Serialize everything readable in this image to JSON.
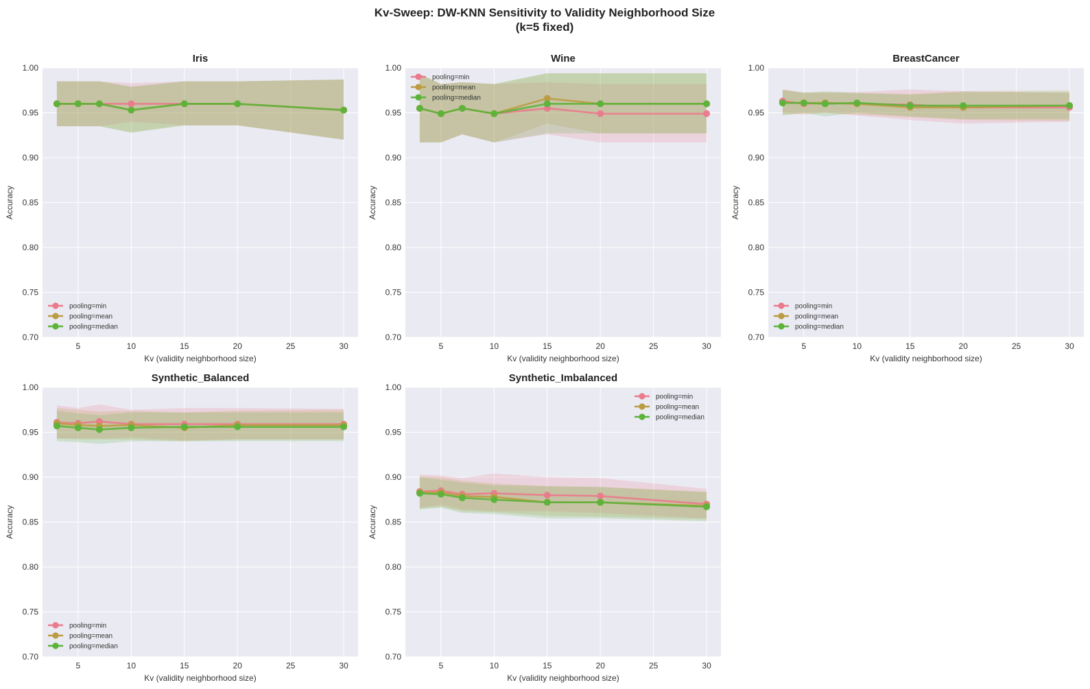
{
  "figure": {
    "title_line1": "Kv-Sweep: DW-KNN Sensitivity to Validity Neighborhood Size",
    "title_line2": "(k=5 fixed)"
  },
  "colors": {
    "min": "#ea7a8c",
    "mean": "#bb9c42",
    "median": "#5cb33a",
    "panel_bg": "#eaeaf2",
    "grid": "#ffffff"
  },
  "chart_data": [
    {
      "type": "line",
      "title": "Iris",
      "xlabel": "Kv (validity neighborhood size)",
      "ylabel": "Accuracy",
      "x": [
        3,
        5,
        7,
        10,
        15,
        20,
        30
      ],
      "xlim": [
        1.65,
        31.35
      ],
      "ylim": [
        0.7,
        1.0
      ],
      "xticks": [
        5,
        10,
        15,
        20,
        25,
        30
      ],
      "yticks": [
        "0.70",
        "0.75",
        "0.80",
        "0.85",
        "0.90",
        "0.95",
        "1.00"
      ],
      "grid": true,
      "legend": "lower-left",
      "series": [
        {
          "name": "pooling=min",
          "color_key": "min",
          "values": [
            0.96,
            0.96,
            0.96,
            0.96,
            0.96,
            0.96,
            0.953
          ],
          "lower": [
            0.935,
            0.935,
            0.935,
            0.94,
            0.936,
            0.936,
            0.92
          ],
          "upper": [
            0.985,
            0.985,
            0.985,
            0.983,
            0.985,
            0.985,
            0.987
          ]
        },
        {
          "name": "pooling=mean",
          "color_key": "mean",
          "values": [
            0.96,
            0.96,
            0.96,
            0.953,
            0.96,
            0.96,
            0.953
          ],
          "lower": [
            0.935,
            0.935,
            0.935,
            0.928,
            0.936,
            0.936,
            0.92
          ],
          "upper": [
            0.985,
            0.985,
            0.985,
            0.979,
            0.985,
            0.985,
            0.987
          ]
        },
        {
          "name": "pooling=median",
          "color_key": "median",
          "values": [
            0.96,
            0.96,
            0.96,
            0.953,
            0.96,
            0.96,
            0.953
          ],
          "lower": [
            0.935,
            0.935,
            0.935,
            0.928,
            0.936,
            0.936,
            0.92
          ],
          "upper": [
            0.985,
            0.985,
            0.985,
            0.979,
            0.985,
            0.985,
            0.987
          ]
        }
      ]
    },
    {
      "type": "line",
      "title": "Wine",
      "xlabel": "Kv (validity neighborhood size)",
      "ylabel": "Accuracy",
      "x": [
        3,
        5,
        7,
        10,
        15,
        20,
        30
      ],
      "xlim": [
        1.65,
        31.35
      ],
      "ylim": [
        0.7,
        1.0
      ],
      "xticks": [
        5,
        10,
        15,
        20,
        25,
        30
      ],
      "yticks": [
        "0.70",
        "0.75",
        "0.80",
        "0.85",
        "0.90",
        "0.95",
        "1.00"
      ],
      "grid": true,
      "legend": "upper-left",
      "series": [
        {
          "name": "pooling=min",
          "color_key": "min",
          "values": [
            0.955,
            0.949,
            0.955,
            0.949,
            0.955,
            0.949,
            0.949
          ],
          "lower": [
            0.917,
            0.917,
            0.926,
            0.917,
            0.926,
            0.917,
            0.917
          ],
          "upper": [
            0.993,
            0.982,
            0.984,
            0.982,
            0.984,
            0.982,
            0.982
          ]
        },
        {
          "name": "pooling=mean",
          "color_key": "mean",
          "values": [
            0.955,
            0.949,
            0.955,
            0.949,
            0.966,
            0.96,
            0.96
          ],
          "lower": [
            0.917,
            0.917,
            0.926,
            0.917,
            0.938,
            0.927,
            0.927
          ],
          "upper": [
            0.993,
            0.982,
            0.984,
            0.982,
            0.994,
            0.994,
            0.994
          ]
        },
        {
          "name": "pooling=median",
          "color_key": "median",
          "values": [
            0.955,
            0.949,
            0.955,
            0.949,
            0.96,
            0.96,
            0.96
          ],
          "lower": [
            0.917,
            0.917,
            0.926,
            0.917,
            0.927,
            0.927,
            0.927
          ],
          "upper": [
            0.993,
            0.982,
            0.984,
            0.982,
            0.994,
            0.994,
            0.994
          ]
        }
      ]
    },
    {
      "type": "line",
      "title": "BreastCancer",
      "xlabel": "Kv (validity neighborhood size)",
      "ylabel": "Accuracy",
      "x": [
        3,
        5,
        7,
        10,
        15,
        20,
        30
      ],
      "xlim": [
        1.65,
        31.35
      ],
      "ylim": [
        0.7,
        1.0
      ],
      "xticks": [
        5,
        10,
        15,
        20,
        25,
        30
      ],
      "yticks": [
        "0.70",
        "0.75",
        "0.80",
        "0.85",
        "0.90",
        "0.95",
        "1.00"
      ],
      "grid": true,
      "legend": "lower-left",
      "series": [
        {
          "name": "pooling=min",
          "color_key": "min",
          "values": [
            0.963,
            0.96,
            0.961,
            0.96,
            0.959,
            0.956,
            0.956
          ],
          "lower": [
            0.95,
            0.948,
            0.95,
            0.947,
            0.942,
            0.938,
            0.94
          ],
          "upper": [
            0.976,
            0.972,
            0.973,
            0.973,
            0.976,
            0.974,
            0.972
          ]
        },
        {
          "name": "pooling=mean",
          "color_key": "mean",
          "values": [
            0.961,
            0.961,
            0.961,
            0.96,
            0.956,
            0.956,
            0.958
          ],
          "lower": [
            0.948,
            0.949,
            0.95,
            0.948,
            0.945,
            0.942,
            0.941
          ],
          "upper": [
            0.976,
            0.973,
            0.972,
            0.972,
            0.971,
            0.974,
            0.975
          ]
        },
        {
          "name": "pooling=median",
          "color_key": "median",
          "values": [
            0.961,
            0.961,
            0.96,
            0.961,
            0.958,
            0.958,
            0.958
          ],
          "lower": [
            0.947,
            0.95,
            0.946,
            0.95,
            0.946,
            0.943,
            0.943
          ],
          "upper": [
            0.975,
            0.972,
            0.974,
            0.972,
            0.97,
            0.973,
            0.973
          ]
        }
      ]
    },
    {
      "type": "line",
      "title": "Synthetic_Balanced",
      "xlabel": "Kv (validity neighborhood size)",
      "ylabel": "Accuracy",
      "x": [
        3,
        5,
        7,
        10,
        15,
        20,
        30
      ],
      "xlim": [
        1.65,
        31.35
      ],
      "ylim": [
        0.7,
        1.0
      ],
      "xticks": [
        5,
        10,
        15,
        20,
        25,
        30
      ],
      "yticks": [
        "0.70",
        "0.75",
        "0.80",
        "0.85",
        "0.90",
        "0.95",
        "1.00"
      ],
      "grid": true,
      "legend": "lower-left",
      "series": [
        {
          "name": "pooling=min",
          "color_key": "min",
          "values": [
            0.961,
            0.96,
            0.962,
            0.959,
            0.959,
            0.959,
            0.959
          ],
          "lower": [
            0.943,
            0.943,
            0.943,
            0.944,
            0.941,
            0.942,
            0.942
          ],
          "upper": [
            0.98,
            0.977,
            0.981,
            0.975,
            0.977,
            0.977,
            0.976
          ]
        },
        {
          "name": "pooling=mean",
          "color_key": "mean",
          "values": [
            0.96,
            0.958,
            0.957,
            0.958,
            0.955,
            0.958,
            0.958
          ],
          "lower": [
            0.943,
            0.942,
            0.942,
            0.942,
            0.94,
            0.942,
            0.942
          ],
          "upper": [
            0.977,
            0.975,
            0.973,
            0.974,
            0.972,
            0.974,
            0.975
          ]
        },
        {
          "name": "pooling=median",
          "color_key": "median",
          "values": [
            0.957,
            0.955,
            0.953,
            0.955,
            0.956,
            0.956,
            0.956
          ],
          "lower": [
            0.94,
            0.939,
            0.937,
            0.94,
            0.94,
            0.94,
            0.94
          ],
          "upper": [
            0.974,
            0.971,
            0.969,
            0.972,
            0.972,
            0.972,
            0.972
          ]
        }
      ]
    },
    {
      "type": "line",
      "title": "Synthetic_Imbalanced",
      "xlabel": "Kv (validity neighborhood size)",
      "ylabel": "Accuracy",
      "x": [
        3,
        5,
        7,
        10,
        15,
        20,
        30
      ],
      "xlim": [
        1.65,
        31.35
      ],
      "ylim": [
        0.7,
        1.0
      ],
      "xticks": [
        5,
        10,
        15,
        20,
        25,
        30
      ],
      "yticks": [
        "0.70",
        "0.75",
        "0.80",
        "0.85",
        "0.90",
        "0.95",
        "1.00"
      ],
      "grid": true,
      "legend": "upper-right",
      "series": [
        {
          "name": "pooling=min",
          "color_key": "min",
          "values": [
            0.884,
            0.885,
            0.881,
            0.882,
            0.88,
            0.879,
            0.87
          ],
          "lower": [
            0.866,
            0.869,
            0.864,
            0.862,
            0.862,
            0.86,
            0.854
          ],
          "upper": [
            0.903,
            0.902,
            0.899,
            0.904,
            0.9,
            0.899,
            0.887
          ]
        },
        {
          "name": "pooling=mean",
          "color_key": "mean",
          "values": [
            0.883,
            0.883,
            0.879,
            0.878,
            0.872,
            0.872,
            0.868
          ],
          "lower": [
            0.865,
            0.867,
            0.862,
            0.861,
            0.857,
            0.856,
            0.853
          ],
          "upper": [
            0.901,
            0.9,
            0.896,
            0.893,
            0.89,
            0.889,
            0.884
          ]
        },
        {
          "name": "pooling=median",
          "color_key": "median",
          "values": [
            0.882,
            0.881,
            0.877,
            0.875,
            0.872,
            0.872,
            0.867
          ],
          "lower": [
            0.864,
            0.866,
            0.86,
            0.859,
            0.854,
            0.854,
            0.851
          ],
          "upper": [
            0.9,
            0.897,
            0.894,
            0.891,
            0.89,
            0.889,
            0.883
          ]
        }
      ]
    }
  ]
}
